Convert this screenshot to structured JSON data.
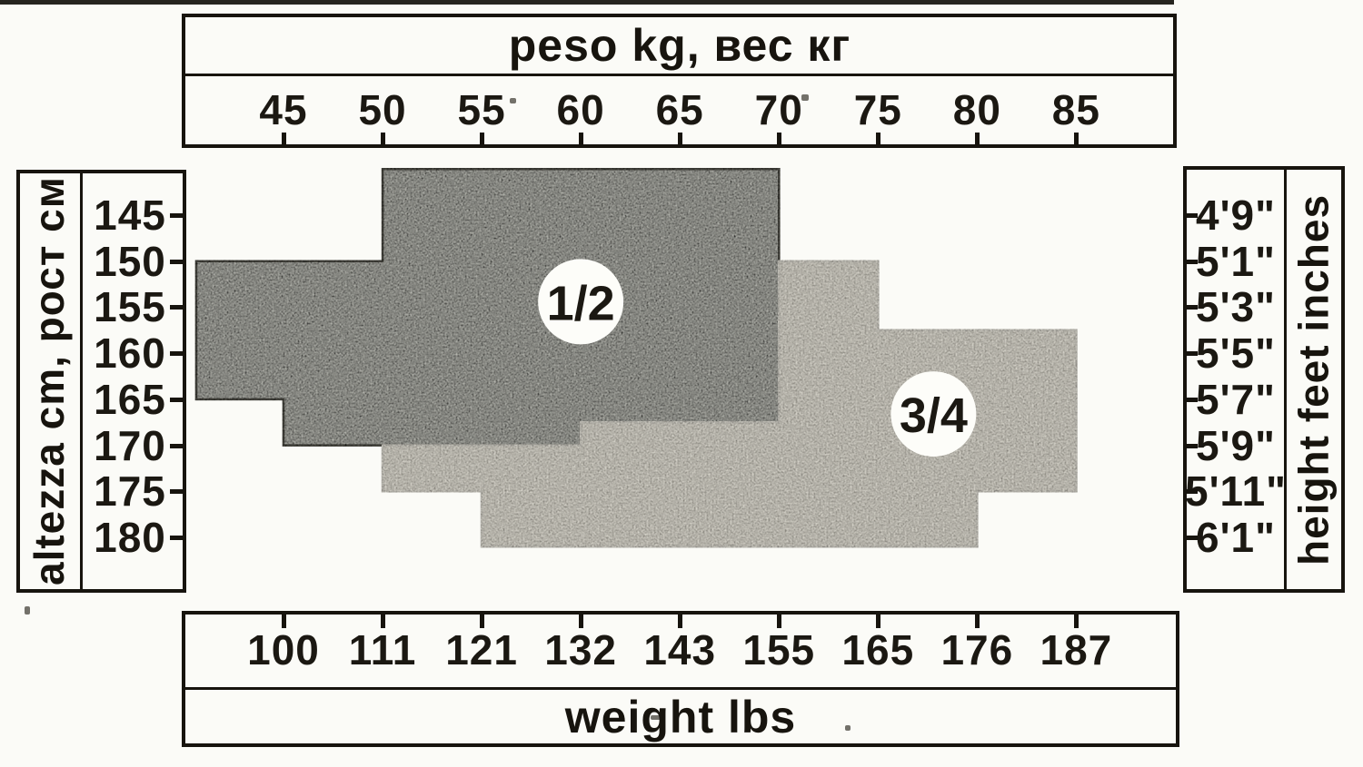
{
  "chart_data": {
    "type": "area",
    "title_top": "peso kg, вес кг",
    "title_bottom": "weight lbs",
    "title_left": "altezza cm, рост см",
    "title_right": "height feet inches",
    "kg_ticks": [
      45,
      50,
      55,
      60,
      65,
      70,
      75,
      80,
      85
    ],
    "lbs_ticks": [
      100,
      111,
      121,
      132,
      143,
      155,
      165,
      176,
      187
    ],
    "cm_ticks": [
      145,
      150,
      155,
      160,
      165,
      170,
      175,
      180
    ],
    "feet_inches_ticks": [
      "4'9\"",
      "5'1\"",
      "5'3\"",
      "5'5\"",
      "5'7\"",
      "5'9\"",
      "5'11\"",
      "6'1\""
    ],
    "axis_ranges": {
      "kg": [
        40.6,
        87.5
      ],
      "cm": [
        140,
        184
      ]
    },
    "grid": "off",
    "regions": [
      {
        "label": "1/2",
        "fill": "#c9cac2",
        "outline": "#5c5b53",
        "badge_center": {
          "kg": 60.0,
          "cm": 154.4
        },
        "polygon_kg_cm": [
          [
            50,
            140
          ],
          [
            70,
            140
          ],
          [
            70,
            167.5
          ],
          [
            60,
            167.5
          ],
          [
            60,
            170
          ],
          [
            45,
            170
          ],
          [
            45,
            165
          ],
          [
            40.6,
            165
          ],
          [
            40.6,
            150
          ],
          [
            50,
            150
          ]
        ]
      },
      {
        "label": "3/4",
        "fill": "#464238",
        "outline": "#17140e",
        "badge_center": {
          "kg": 77.8,
          "cm": 166.6
        },
        "polygon_kg_cm": [
          [
            50,
            170
          ],
          [
            60,
            170
          ],
          [
            60,
            167.5
          ],
          [
            70,
            167.5
          ],
          [
            70,
            150
          ],
          [
            75,
            150
          ],
          [
            75,
            157.5
          ],
          [
            85,
            157.5
          ],
          [
            85,
            175
          ],
          [
            80,
            175
          ],
          [
            80,
            181
          ],
          [
            55,
            181
          ],
          [
            55,
            175
          ],
          [
            50,
            175
          ]
        ]
      }
    ],
    "badge_fill": "#fdfdf9",
    "badge_text_color": "#1b1812",
    "ink_color": "#17140e"
  }
}
